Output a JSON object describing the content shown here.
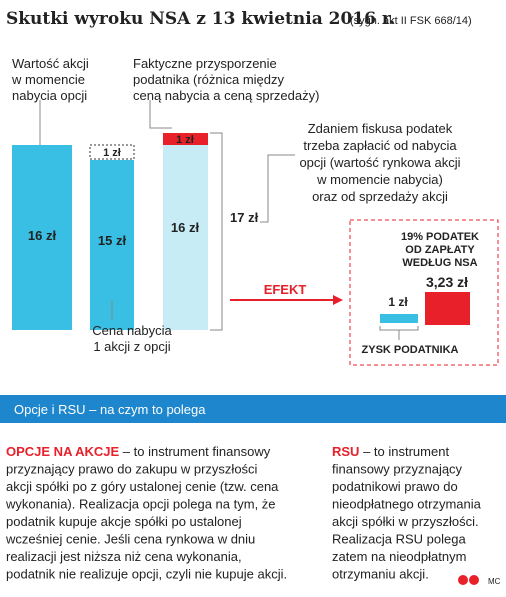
{
  "header": {
    "title": "Skutki wyroku NSA z 13 kwietnia 2016 r.",
    "subtitle": "(sygn. akt II FSK 668/14)"
  },
  "diagram": {
    "label_value": [
      "Wartość akcji",
      "w momencie",
      "nabycia opcji"
    ],
    "label_gain": [
      "Faktyczne przysporzenie",
      "podatnika (różnica między",
      "ceną nabycia a ceną sprzedaży)"
    ],
    "bar1": "16 zł",
    "bar2": "15 zł",
    "bar2_top": "1 zł",
    "bar3": "16 zł",
    "bar3_top": "1 zł",
    "total": "17 zł",
    "fiscus": [
      "Zdaniem fiskusa podatek",
      "trzeba zapłacić od nabycia",
      "opcji (wartość rynkowa akcji",
      "w momencie nabycia)",
      "oraz od sprzedaży akcji"
    ],
    "purchase": [
      "Cena nabycia",
      "1 akcji z opcji"
    ],
    "effect": "EFEKT",
    "nsa": [
      "19% PODATEK",
      "OD ZAPŁATY",
      "WEDŁUG NSA"
    ],
    "tax": "3,23 zł",
    "gain": "1 zł",
    "gain_label": "ZYSK PODATNIKA"
  },
  "section": {
    "title": "Opcje i RSU – na czym to polega",
    "left": {
      "term": "OPCJE NA AKCJE",
      "lines": [
        " – to instrument finansowy",
        "przyznający prawo do zakupu w przyszłości",
        "akcji spółki po z góry ustalonej cenie (tzw. cena",
        "wykonania). Realizacja opcji polega na tym, że",
        "podatnik kupuje akcje spółki po ustalonej",
        "wcześniej cenie. Jeśli cena rynkowa w dniu",
        "realizacji jest niższa niż cena wykonania,",
        "podatnik nie realizuje opcji, czyli nie kupuje akcji."
      ]
    },
    "right": {
      "term": "RSU",
      "lines": [
        " – to instrument",
        "finansowy przyznający",
        "podatnikowi prawo do",
        "nieodpłatnego otrzymania",
        "akcji spółki w przyszłości.",
        "Realizacja RSU polega",
        "zatem na nieodpłatnym",
        "otrzymaniu akcji."
      ]
    },
    "credit": "MC"
  }
}
